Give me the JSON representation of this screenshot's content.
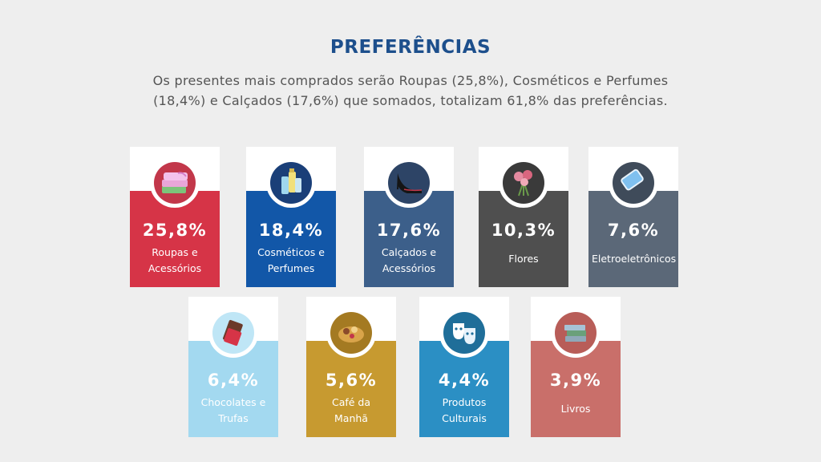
{
  "header": {
    "title": "PREFERÊNCIAS",
    "subtitle_line1": "Os presentes mais comprados serão Roupas (25,8%), Cosméticos e Perfumes",
    "subtitle_line2": "(18,4%) e Calçados (17,6%) que somados, totalizam 61,8% das preferências."
  },
  "cards": [
    {
      "value": "25,8%",
      "label1": "Roupas e",
      "label2": "Acessórios",
      "color": "#d63447",
      "icon": "clothes-icon"
    },
    {
      "value": "18,4%",
      "label1": "Cosméticos e",
      "label2": "Perfumes",
      "color": "#1257a8",
      "icon": "cosmetics-icon"
    },
    {
      "value": "17,6%",
      "label1": "Calçados e",
      "label2": "Acessórios",
      "color": "#3c5f8a",
      "icon": "high-heel-icon"
    },
    {
      "value": "10,3%",
      "label1": "Flores",
      "label2": "",
      "color": "#4f4f4f",
      "icon": "flowers-icon"
    },
    {
      "value": "7,6%",
      "label1": "Eletroeletrônicos",
      "label2": "",
      "color": "#5b6878",
      "icon": "smartphone-icon"
    },
    {
      "value": "6,4%",
      "label1": "Chocolates e",
      "label2": "Trufas",
      "color": "#a3d9f0",
      "icon": "chocolate-icon"
    },
    {
      "value": "5,6%",
      "label1": "Café da",
      "label2": "Manhã",
      "color": "#c79a30",
      "icon": "breakfast-basket-icon"
    },
    {
      "value": "4,4%",
      "label1": "Produtos",
      "label2": "Culturais",
      "color": "#2b8fc4",
      "icon": "theater-masks-icon"
    },
    {
      "value": "3,9%",
      "label1": "Livros",
      "label2": "",
      "color": "#c96f6a",
      "icon": "books-icon"
    }
  ]
}
